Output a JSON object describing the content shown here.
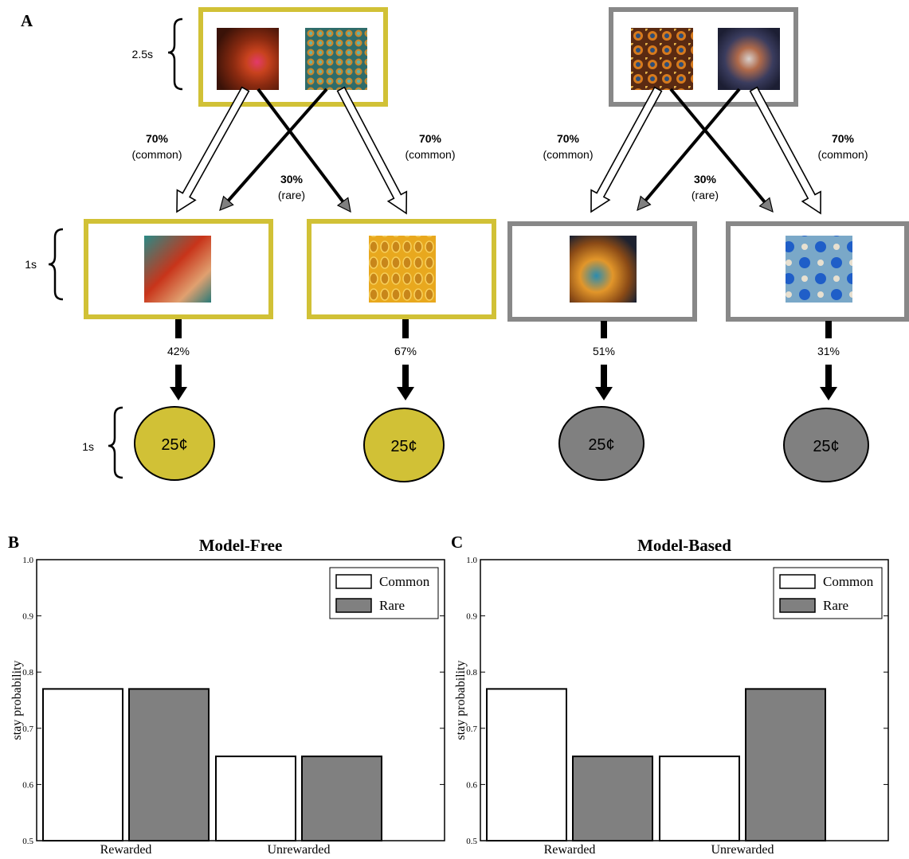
{
  "panelA": {
    "letter": "A",
    "timings": {
      "first": "2.5s",
      "second": "1s",
      "outcome": "1s"
    },
    "transitions": {
      "common_pct": "70%",
      "common_label": "(common)",
      "rare_pct": "30%",
      "rare_label": "(rare)"
    },
    "first_stage": [
      {
        "color": "#d1c136",
        "images": [
          "fractal-swirl-red-icon",
          "fractal-teal-lattice-icon"
        ]
      },
      {
        "color": "#888888",
        "images": [
          "fractal-kaleido-orange-icon",
          "fractal-kaleido-dark-icon"
        ]
      }
    ],
    "second_stage": [
      {
        "color": "#d1c136",
        "image": "fractal-red-spiral-icon",
        "reward_prob": "42%",
        "reward": "25¢",
        "coin_color": "#d1c136"
      },
      {
        "color": "#d1c136",
        "image": "fractal-gold-lattice-icon",
        "reward_prob": "67%",
        "reward": "25¢",
        "coin_color": "#d1c136"
      },
      {
        "color": "#888888",
        "image": "fractal-orange-teal-icon",
        "reward_prob": "51%",
        "reward": "25¢",
        "coin_color": "#808080"
      },
      {
        "color": "#888888",
        "image": "fractal-blue-orbs-icon",
        "reward_prob": "31%",
        "reward": "25¢",
        "coin_color": "#808080"
      }
    ]
  },
  "panelB": {
    "letter": "B"
  },
  "panelC": {
    "letter": "C"
  },
  "chart_data": [
    {
      "type": "bar",
      "title": "Model-Free",
      "ylabel": "stay probability",
      "xlabel": "",
      "categories": [
        "Rewarded",
        "Unrewarded"
      ],
      "series": [
        {
          "name": "Common",
          "color": "#ffffff",
          "values": [
            0.77,
            0.65
          ]
        },
        {
          "name": "Rare",
          "color": "#808080",
          "values": [
            0.77,
            0.65
          ]
        }
      ],
      "ylim": [
        0.5,
        1.0
      ],
      "yticks": [
        "0.5",
        "0.6",
        "0.7",
        "0.8",
        "0.9",
        "1.0"
      ],
      "legend": "top-right",
      "grid": false
    },
    {
      "type": "bar",
      "title": "Model-Based",
      "ylabel": "stay probability",
      "xlabel": "",
      "categories": [
        "Rewarded",
        "Unrewarded"
      ],
      "series": [
        {
          "name": "Common",
          "color": "#ffffff",
          "values": [
            0.77,
            0.65
          ]
        },
        {
          "name": "Rare",
          "color": "#808080",
          "values": [
            0.65,
            0.77
          ]
        }
      ],
      "ylim": [
        0.5,
        1.0
      ],
      "yticks": [
        "0.5",
        "0.6",
        "0.7",
        "0.8",
        "0.9",
        "1.0"
      ],
      "legend": "top-right",
      "grid": false
    }
  ]
}
